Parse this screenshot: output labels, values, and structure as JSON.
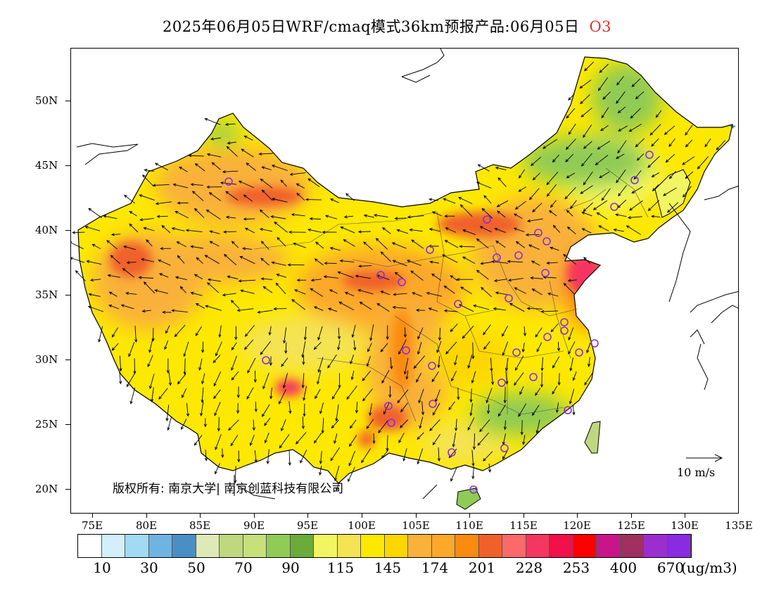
{
  "title": {
    "main": "2025年06月05日WRF/cmaq模式36km预报产品:06月05日",
    "pollutant": "O3",
    "pollutant_color": "#e8302a"
  },
  "map": {
    "lat_labels": [
      "50N",
      "45N",
      "40N",
      "35N",
      "30N",
      "25N",
      "20N"
    ],
    "lon_labels": [
      "75E",
      "80E",
      "85E",
      "90E",
      "95E",
      "100E",
      "105E",
      "110E",
      "115E",
      "120E",
      "125E",
      "130E",
      "135E"
    ],
    "copyright": "版权所有: 南京大学| 南京创蓝科技有限公司",
    "wind_reference": "10 m/s",
    "station_marker_color": "#8a2be2"
  },
  "colorbar": {
    "colors": [
      "#ffffff",
      "#d4effc",
      "#a0daf4",
      "#6fb4e0",
      "#4a8fc4",
      "#dfe9b8",
      "#bdd87f",
      "#c6e07a",
      "#8fcb55",
      "#6aab3a",
      "#f2f562",
      "#f4e352",
      "#fde800",
      "#fdd600",
      "#f9b13a",
      "#fca82a",
      "#fb8a10",
      "#f0602a",
      "#fa6a6a",
      "#f53660",
      "#f0104a",
      "#ff0000",
      "#c8168a",
      "#a03060",
      "#9c2ed0",
      "#8a2be2"
    ],
    "labels": [
      "10",
      "30",
      "50",
      "70",
      "90",
      "115",
      "145",
      "174",
      "201",
      "228",
      "253",
      "400",
      "670"
    ],
    "unit": "(ug/m3)"
  }
}
